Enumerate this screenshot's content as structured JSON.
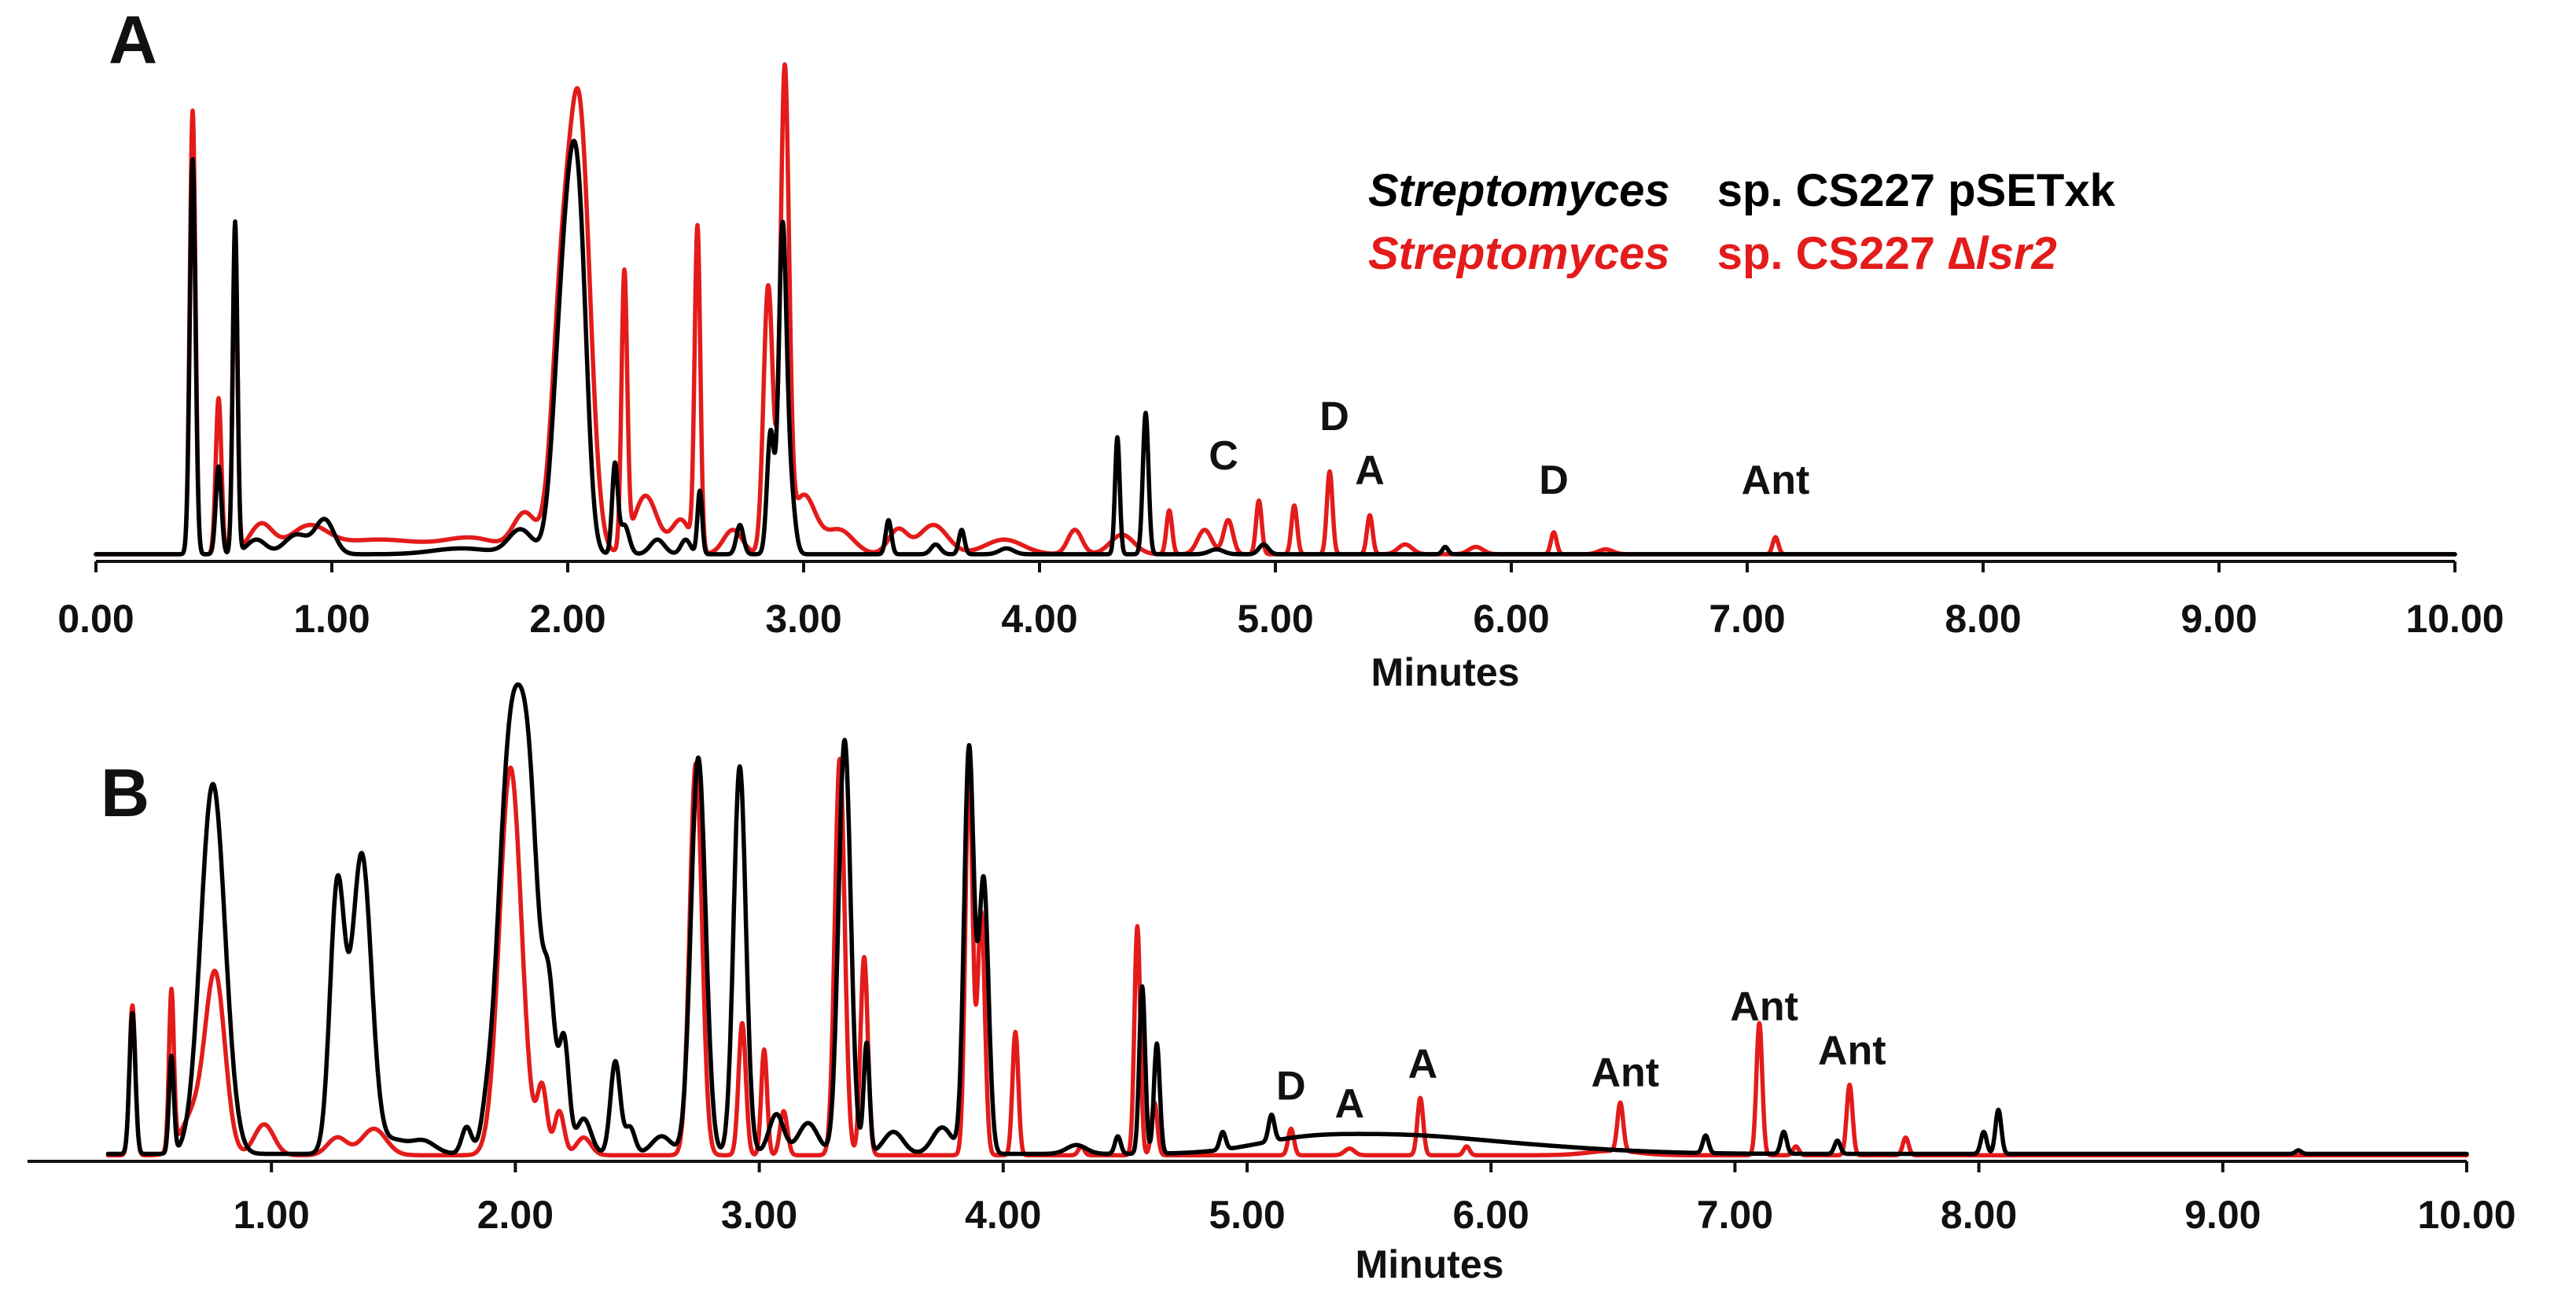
{
  "colors": {
    "wt": "#000000",
    "mutant": "#e31b1b",
    "axis": "#111111"
  },
  "legend": {
    "wt": {
      "genus": "Streptomyces",
      "strain": "sp. CS227 pSETxk",
      "color": "#000000"
    },
    "mutant": {
      "genus": "Streptomyces",
      "strain_prefix": "sp. CS227 ∆",
      "gene": "lsr2",
      "color": "#e31b1b"
    }
  },
  "chart_data": [
    {
      "panel": "A",
      "type": "line",
      "title": "",
      "xlabel": "Minutes",
      "ylabel": "",
      "xlim": [
        0,
        10
      ],
      "ylim": [
        0,
        100
      ],
      "grid": false,
      "legend_position": "top-right",
      "tick_values": [
        0,
        1,
        2,
        3,
        4,
        5,
        6,
        7,
        8,
        9,
        10
      ],
      "tick_labels": [
        "0.00",
        "1.00",
        "2.00",
        "3.00",
        "4.00",
        "5.00",
        "6.00",
        "7.00",
        "8.00",
        "9.00",
        "10.00"
      ],
      "annotations": [
        {
          "text": "C",
          "x": 4.78,
          "y": 16
        },
        {
          "text": "D",
          "x": 5.25,
          "y": 24
        },
        {
          "text": "A",
          "x": 5.4,
          "y": 13
        },
        {
          "text": "D",
          "x": 6.18,
          "y": 11
        },
        {
          "text": "Ant",
          "x": 7.12,
          "y": 11
        }
      ],
      "series": [
        {
          "name": "Streptomyces sp. CS227 pSETxk",
          "color": "#000000",
          "baseline": 0.5,
          "peaks": [
            [
              0.41,
              81,
              0.012
            ],
            [
              0.52,
              18,
              0.012
            ],
            [
              0.59,
              68,
              0.01
            ],
            [
              0.68,
              3,
              0.04
            ],
            [
              0.85,
              4,
              0.05
            ],
            [
              0.97,
              7,
              0.04
            ],
            [
              1.55,
              1.2,
              0.12
            ],
            [
              1.8,
              5,
              0.05
            ],
            [
              1.96,
              26,
              0.035
            ],
            [
              2.02,
              68,
              0.04
            ],
            [
              2.06,
              25,
              0.03
            ],
            [
              2.2,
              18,
              0.012
            ],
            [
              2.24,
              6,
              0.02
            ],
            [
              2.38,
              3,
              0.03
            ],
            [
              2.5,
              3,
              0.02
            ],
            [
              2.56,
              13,
              0.01
            ],
            [
              2.73,
              6,
              0.015
            ],
            [
              2.86,
              25,
              0.015
            ],
            [
              2.91,
              63,
              0.016
            ],
            [
              2.94,
              15,
              0.02
            ],
            [
              3.36,
              7,
              0.012
            ],
            [
              3.56,
              2,
              0.02
            ],
            [
              3.67,
              5,
              0.012
            ],
            [
              3.86,
              1.2,
              0.03
            ],
            [
              4.33,
              24,
              0.01
            ],
            [
              4.45,
              29,
              0.012
            ],
            [
              4.75,
              1,
              0.03
            ],
            [
              4.95,
              2,
              0.02
            ],
            [
              5.72,
              1.5,
              0.012
            ]
          ]
        },
        {
          "name": "Streptomyces sp. CS227 ∆lsr2",
          "color": "#e31b1b",
          "baseline": 0.5,
          "peaks": [
            [
              0.41,
              91,
              0.012
            ],
            [
              0.52,
              32,
              0.012
            ],
            [
              0.59,
              64,
              0.01
            ],
            [
              0.7,
              6,
              0.05
            ],
            [
              0.9,
              5,
              0.08
            ],
            [
              1.2,
              3,
              0.2
            ],
            [
              1.6,
              3,
              0.12
            ],
            [
              1.82,
              8,
              0.05
            ],
            [
              1.97,
              45,
              0.04
            ],
            [
              2.05,
              88,
              0.045
            ],
            [
              2.24,
              56,
              0.012
            ],
            [
              2.33,
              12,
              0.05
            ],
            [
              2.48,
              7,
              0.04
            ],
            [
              2.55,
              66,
              0.012
            ],
            [
              2.7,
              5,
              0.04
            ],
            [
              2.85,
              55,
              0.02
            ],
            [
              2.92,
              97,
              0.018
            ],
            [
              3.0,
              12,
              0.05
            ],
            [
              3.15,
              5,
              0.06
            ],
            [
              3.4,
              5,
              0.04
            ],
            [
              3.55,
              6,
              0.06
            ],
            [
              3.85,
              3,
              0.08
            ],
            [
              4.15,
              5,
              0.03
            ],
            [
              4.35,
              4,
              0.05
            ],
            [
              4.55,
              9,
              0.012
            ],
            [
              4.7,
              5,
              0.03
            ],
            [
              4.8,
              7,
              0.02
            ],
            [
              4.93,
              11,
              0.012
            ],
            [
              5.08,
              10,
              0.012
            ],
            [
              5.23,
              17,
              0.012
            ],
            [
              5.4,
              8,
              0.012
            ],
            [
              5.55,
              2,
              0.03
            ],
            [
              5.85,
              1.5,
              0.03
            ],
            [
              6.18,
              4.5,
              0.012
            ],
            [
              6.4,
              1,
              0.03
            ],
            [
              7.12,
              3.5,
              0.012
            ]
          ]
        }
      ]
    },
    {
      "panel": "B",
      "type": "line",
      "title": "",
      "xlabel": "Minutes",
      "ylabel": "",
      "xlim": [
        0,
        10
      ],
      "ylim": [
        0,
        100
      ],
      "grid": false,
      "tick_values": [
        1,
        2,
        3,
        4,
        5,
        6,
        7,
        8,
        9,
        10
      ],
      "tick_labels": [
        "1.00",
        "2.00",
        "3.00",
        "4.00",
        "5.00",
        "6.00",
        "7.00",
        "8.00",
        "9.00",
        "10.00"
      ],
      "annotations": [
        {
          "text": "D",
          "x": 5.18,
          "y": 11
        },
        {
          "text": "A",
          "x": 5.42,
          "y": 7
        },
        {
          "text": "A",
          "x": 5.72,
          "y": 16
        },
        {
          "text": "Ant",
          "x": 6.55,
          "y": 14
        },
        {
          "text": "Ant",
          "x": 7.12,
          "y": 29
        },
        {
          "text": "Ant",
          "x": 7.48,
          "y": 19
        }
      ],
      "series": [
        {
          "name": "Streptomyces sp. CS227 pSETxk",
          "color": "#000000",
          "baseline": 0.8,
          "peaks": [
            [
              0.43,
              32,
              0.012
            ],
            [
              0.59,
              22,
              0.01
            ],
            [
              0.76,
              84,
              0.05
            ],
            [
              1.27,
              60,
              0.03
            ],
            [
              1.37,
              68,
              0.04
            ],
            [
              1.5,
              3,
              0.05
            ],
            [
              1.62,
              3,
              0.05
            ],
            [
              1.8,
              6,
              0.02
            ],
            [
              1.88,
              4,
              0.02
            ],
            [
              1.98,
              92,
              0.05
            ],
            [
              2.06,
              65,
              0.04
            ],
            [
              2.14,
              32,
              0.025
            ],
            [
              2.2,
              25,
              0.02
            ],
            [
              2.28,
              8,
              0.03
            ],
            [
              2.41,
              21,
              0.02
            ],
            [
              2.47,
              6,
              0.02
            ],
            [
              2.6,
              4,
              0.04
            ],
            [
              2.75,
              90,
              0.03
            ],
            [
              2.92,
              88,
              0.025
            ],
            [
              3.07,
              9,
              0.03
            ],
            [
              3.2,
              7,
              0.04
            ],
            [
              3.35,
              94,
              0.025
            ],
            [
              3.44,
              25,
              0.012
            ],
            [
              3.55,
              5,
              0.04
            ],
            [
              3.75,
              6,
              0.04
            ],
            [
              3.86,
              92,
              0.02
            ],
            [
              3.92,
              62,
              0.02
            ],
            [
              4.3,
              2,
              0.04
            ],
            [
              4.47,
              4,
              0.012
            ],
            [
              4.57,
              38,
              0.012
            ],
            [
              4.63,
              25,
              0.012
            ],
            [
              4.9,
              4,
              0.012
            ],
            [
              5.1,
              6,
              0.012
            ],
            [
              5.2,
              2,
              0.2
            ],
            [
              5.55,
              3,
              0.3
            ],
            [
              6.0,
              2,
              0.4
            ],
            [
              6.88,
              4,
              0.012
            ],
            [
              7.2,
              5,
              0.012
            ],
            [
              7.42,
              3,
              0.012
            ],
            [
              8.02,
              5,
              0.012
            ],
            [
              8.08,
              10,
              0.012
            ],
            [
              9.31,
              0.8,
              0.012
            ]
          ]
        },
        {
          "name": "Streptomyces sp. CS227 ∆lsr2",
          "color": "#e31b1b",
          "baseline": 0.5,
          "peaks": [
            [
              0.43,
              34,
              0.012
            ],
            [
              0.59,
              36,
              0.01
            ],
            [
              0.77,
              40,
              0.04
            ],
            [
              0.68,
              9,
              0.05
            ],
            [
              0.97,
              7,
              0.04
            ],
            [
              1.27,
              4,
              0.04
            ],
            [
              1.42,
              6,
              0.05
            ],
            [
              1.98,
              88,
              0.045
            ],
            [
              2.11,
              15,
              0.02
            ],
            [
              2.18,
              10,
              0.02
            ],
            [
              2.28,
              4,
              0.03
            ],
            [
              2.74,
              89,
              0.025
            ],
            [
              2.93,
              30,
              0.015
            ],
            [
              3.02,
              24,
              0.012
            ],
            [
              3.1,
              10,
              0.015
            ],
            [
              3.33,
              90,
              0.02
            ],
            [
              3.43,
              45,
              0.015
            ],
            [
              3.86,
              88,
              0.015
            ],
            [
              3.91,
              55,
              0.015
            ],
            [
              4.05,
              28,
              0.012
            ],
            [
              4.32,
              2,
              0.012
            ],
            [
              4.55,
              52,
              0.012
            ],
            [
              4.62,
              12,
              0.012
            ],
            [
              5.18,
              6,
              0.012
            ],
            [
              5.42,
              1.5,
              0.02
            ],
            [
              5.71,
              13,
              0.012
            ],
            [
              5.9,
              2,
              0.012
            ],
            [
              6.5,
              1,
              0.1
            ],
            [
              6.53,
              11,
              0.012
            ],
            [
              7.1,
              30,
              0.012
            ],
            [
              7.25,
              2,
              0.012
            ],
            [
              7.47,
              16,
              0.012
            ],
            [
              7.7,
              4,
              0.012
            ]
          ]
        }
      ]
    }
  ]
}
